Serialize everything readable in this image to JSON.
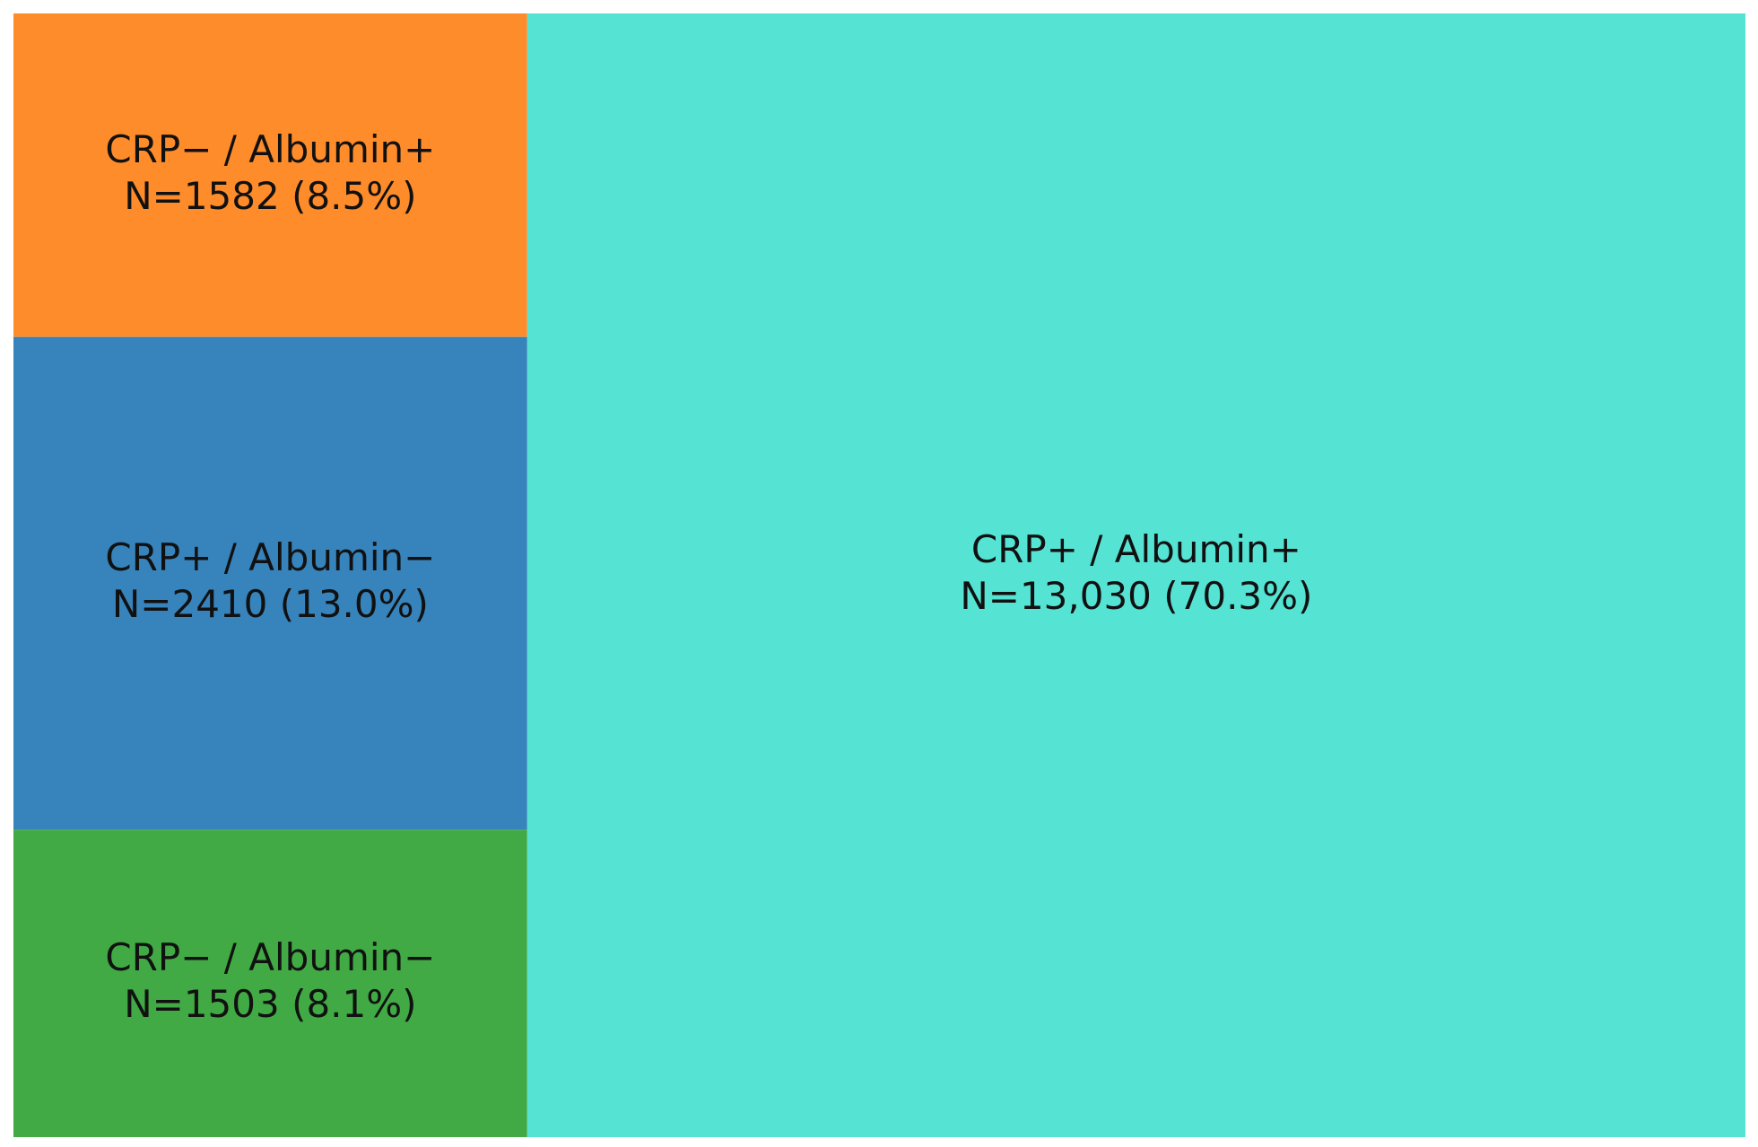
{
  "chart_data": {
    "type": "treemap",
    "categories": [
      "CRP− / Albumin+",
      "CRP+ / Albumin−",
      "CRP− / Albumin−",
      "CRP+ / Albumin+"
    ],
    "values": [
      1582,
      2410,
      1503,
      13030
    ],
    "value_labels": [
      "N=1582 (8.5%)",
      "N=2410 (13.0%)",
      "N=1503 (8.1%)",
      "N=13,030 (70.3%)"
    ],
    "colors": [
      "#ff8c2a",
      "#3783bb",
      "#41aa44",
      "#55e3d4"
    ]
  }
}
